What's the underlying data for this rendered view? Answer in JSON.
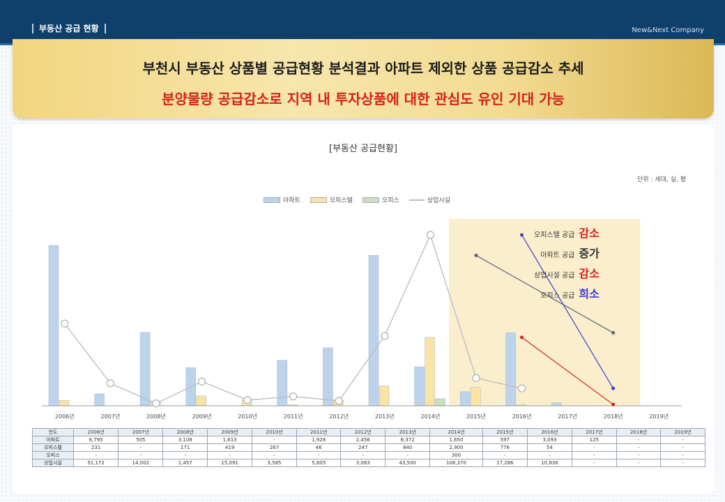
{
  "header": {
    "section_label": "부동산 공급 현황",
    "company": "New&Next Company"
  },
  "banner": {
    "headline1": "부천시 부동산 상품별 공급현황 분석결과 아파트 제외한 상품 공급감소 추세",
    "headline2": "분양물량 공급감소로 지역 내 투자상품에 대한 관심도 유인 기대 가능"
  },
  "chart_data": {
    "type": "bar",
    "title": "[부동산 공급현황]",
    "unit": "단위 : 세대, 실, 평",
    "categories": [
      "2006년",
      "2007년",
      "2008년",
      "2009년",
      "2010년",
      "2011년",
      "2012년",
      "2013년",
      "2014년",
      "2015년",
      "2016년",
      "2017년",
      "2018년",
      "2019년"
    ],
    "series": [
      {
        "name": "아파트",
        "kind": "bar",
        "color": "#bcd3eb",
        "values": [
          6795,
          505,
          3108,
          1613,
          0,
          1928,
          2456,
          6372,
          1650,
          597,
          3093,
          125,
          0,
          0
        ]
      },
      {
        "name": "오피스텔",
        "kind": "bar",
        "color": "#fbe3a5",
        "values": [
          231,
          0,
          171,
          419,
          267,
          46,
          247,
          840,
          2900,
          776,
          54,
          0,
          0,
          0
        ]
      },
      {
        "name": "오피스",
        "kind": "bar",
        "color": "#c9dfc0",
        "values": [
          0,
          0,
          0,
          0,
          0,
          0,
          0,
          0,
          300,
          0,
          0,
          0,
          0,
          0
        ]
      },
      {
        "name": "상업시설",
        "kind": "line",
        "color": "#b9bec4",
        "values": [
          51172,
          14002,
          1457,
          15091,
          3585,
          5805,
          3083,
          43500,
          106370,
          17286,
          10836,
          0,
          0,
          0
        ]
      }
    ],
    "overlay_trends": [
      {
        "name": "오피스텔 공급",
        "color": "#d4211b",
        "from": [
          10,
          2900
        ],
        "to": [
          12,
          54
        ]
      },
      {
        "name": "아파트 공급",
        "color": "#5a6472",
        "from": [
          9,
          6372
        ],
        "to": [
          12,
          3093
        ]
      },
      {
        "name": "오피스 공급",
        "color": "#3b3bd4",
        "from": [
          10,
          106370
        ],
        "to": [
          12,
          10836
        ]
      }
    ],
    "highlight_range": [
      "2015년",
      "2018년"
    ],
    "legend_position": "top-center",
    "grid": false
  },
  "annotations": [
    {
      "label": "오피스텔 공급",
      "keyword": "감소",
      "color": "#d4211b"
    },
    {
      "label": "아파트 공급",
      "keyword": "증가",
      "color": "#333333"
    },
    {
      "label": "상업시설 공급",
      "keyword": "감소",
      "color": "#d4211b"
    },
    {
      "label": "오피스 공급",
      "keyword": "희소",
      "color": "#3b3bd4"
    }
  ],
  "table": {
    "header": [
      "연도",
      "2006년",
      "2007년",
      "2008년",
      "2009년",
      "2010년",
      "2011년",
      "2012년",
      "2013년",
      "2014년",
      "2015년",
      "2016년",
      "2017년",
      "2018년",
      "2019년"
    ],
    "rows": [
      [
        "아파트",
        "6,795",
        "505",
        "3,108",
        "1,613",
        "-",
        "1,928",
        "2,456",
        "6,372",
        "1,650",
        "597",
        "3,093",
        "125",
        "-",
        "-"
      ],
      [
        "오피스텔",
        "231",
        "-",
        "171",
        "419",
        "267",
        "46",
        "247",
        "840",
        "2,900",
        "776",
        "54",
        "-",
        "-",
        "-"
      ],
      [
        "오피스",
        "-",
        "-",
        "-",
        "-",
        "-",
        "-",
        "-",
        "-",
        "300",
        "-",
        "-",
        "-",
        "-",
        "-"
      ],
      [
        "상업시설",
        "51,172",
        "14,002",
        "1,457",
        "15,091",
        "3,585",
        "5,805",
        "3,083",
        "43,500",
        "106,370",
        "17,286",
        "10,836",
        "-",
        "-",
        "-"
      ]
    ]
  }
}
